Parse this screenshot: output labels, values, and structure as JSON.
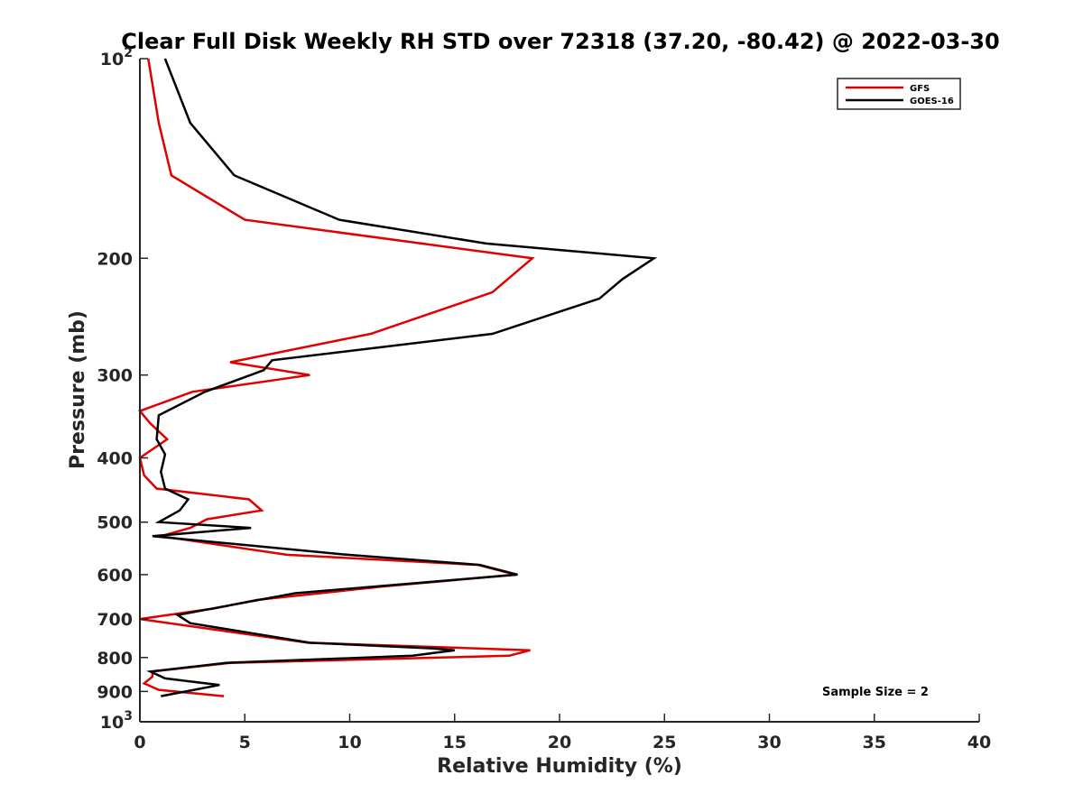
{
  "chart_data": {
    "type": "line",
    "title": "Clear Full Disk Weekly RH STD over 72318 (37.20, -80.42) @ 2022-03-30",
    "xlabel": "Relative Humidity (%)",
    "ylabel": "Pressure (mb)",
    "xlim": [
      0,
      40
    ],
    "ylim": [
      100,
      1000
    ],
    "y_scale": "log",
    "y_reversed": true,
    "grid": false,
    "legend_position": "top-right",
    "x_ticks": [
      "0",
      "5",
      "10",
      "15",
      "20",
      "25",
      "30",
      "35",
      "40"
    ],
    "x_tick_values": [
      0,
      5,
      10,
      15,
      20,
      25,
      30,
      35,
      40
    ],
    "y_ticks": [
      {
        "value": 100,
        "base": "10",
        "exp": "2"
      },
      {
        "value": 200,
        "label": "200"
      },
      {
        "value": 300,
        "label": "300"
      },
      {
        "value": 400,
        "label": "400"
      },
      {
        "value": 500,
        "label": "500"
      },
      {
        "value": 600,
        "label": "600"
      },
      {
        "value": 700,
        "label": "700"
      },
      {
        "value": 800,
        "label": "800"
      },
      {
        "value": 900,
        "label": "900"
      },
      {
        "value": 1000,
        "base": "10",
        "exp": "3"
      }
    ],
    "annotation": "Sample Size = 2",
    "series": [
      {
        "name": "GFS",
        "color": "#e00000",
        "points": [
          [
            0.4,
            100
          ],
          [
            0.9,
            125
          ],
          [
            1.5,
            150
          ],
          [
            5.0,
            175
          ],
          [
            18.7,
            200
          ],
          [
            16.8,
            225
          ],
          [
            11.0,
            260
          ],
          [
            4.3,
            287
          ],
          [
            8.1,
            300
          ],
          [
            2.5,
            318
          ],
          [
            0.0,
            340
          ],
          [
            0.5,
            355
          ],
          [
            1.3,
            375
          ],
          [
            0.0,
            400
          ],
          [
            0.2,
            425
          ],
          [
            0.8,
            445
          ],
          [
            5.2,
            462
          ],
          [
            5.8,
            480
          ],
          [
            3.2,
            495
          ],
          [
            2.4,
            510
          ],
          [
            1.0,
            525
          ],
          [
            7.0,
            560
          ],
          [
            16.1,
            580
          ],
          [
            17.9,
            600
          ],
          [
            11.6,
            625
          ],
          [
            5.6,
            655
          ],
          [
            3.5,
            675
          ],
          [
            0.0,
            700
          ],
          [
            8.0,
            760
          ],
          [
            18.6,
            780
          ],
          [
            17.6,
            795
          ],
          [
            4.3,
            815
          ],
          [
            0.6,
            840
          ],
          [
            0.6,
            855
          ],
          [
            0.2,
            875
          ],
          [
            0.9,
            895
          ],
          [
            4.0,
            915
          ]
        ]
      },
      {
        "name": "GOES-16",
        "color": "#000000",
        "points": [
          [
            1.2,
            100
          ],
          [
            2.4,
            125
          ],
          [
            4.5,
            150
          ],
          [
            9.5,
            175
          ],
          [
            16.5,
            190
          ],
          [
            24.5,
            200
          ],
          [
            23.0,
            215
          ],
          [
            21.9,
            230
          ],
          [
            16.8,
            260
          ],
          [
            6.3,
            285
          ],
          [
            5.9,
            295
          ],
          [
            3.1,
            318
          ],
          [
            0.9,
            345
          ],
          [
            0.8,
            375
          ],
          [
            1.2,
            395
          ],
          [
            1.0,
            420
          ],
          [
            1.2,
            445
          ],
          [
            2.3,
            462
          ],
          [
            1.9,
            480
          ],
          [
            0.9,
            500
          ],
          [
            5.3,
            510
          ],
          [
            0.6,
            525
          ],
          [
            9.9,
            560
          ],
          [
            16.2,
            580
          ],
          [
            18.0,
            600
          ],
          [
            7.4,
            640
          ],
          [
            1.8,
            690
          ],
          [
            2.4,
            710
          ],
          [
            8.1,
            760
          ],
          [
            13.9,
            775
          ],
          [
            15.0,
            780
          ],
          [
            13.0,
            795
          ],
          [
            4.1,
            815
          ],
          [
            0.5,
            840
          ],
          [
            1.2,
            860
          ],
          [
            3.8,
            880
          ],
          [
            1.0,
            915
          ]
        ]
      }
    ]
  }
}
